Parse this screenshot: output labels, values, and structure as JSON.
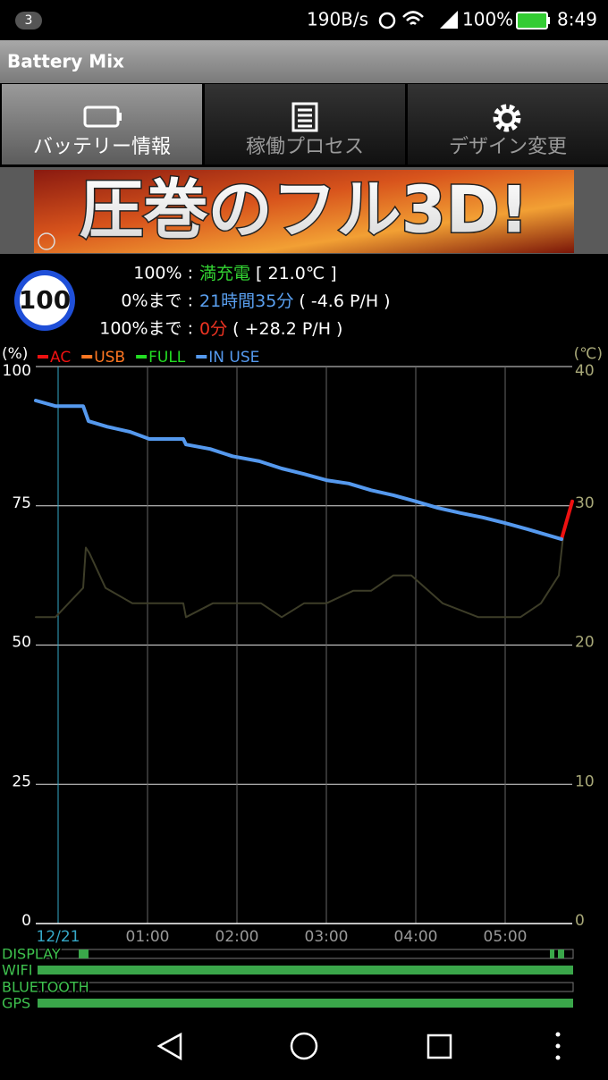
{
  "status_bar": {
    "notifications": "3",
    "network_speed": "190B/s",
    "battery": "100%",
    "time": "8:49"
  },
  "app_title": "Battery Mix",
  "tabs": [
    {
      "label": "バッテリー情報",
      "selected": true
    },
    {
      "label": "稼働プロセス",
      "selected": false
    },
    {
      "label": "デザイン変更",
      "selected": false
    }
  ],
  "ad": {
    "text": "圧巻のフル3D!"
  },
  "battery_info": {
    "level": 100,
    "lines": [
      {
        "prefix": "100% :",
        "highlight": "満充電",
        "highlight_color": "#33d633",
        "suffix": " [ 21.0℃ ]"
      },
      {
        "prefix": "0%まで :",
        "highlight": "21時間35分",
        "highlight_color": "#5aa0f0",
        "suffix": " ( -4.6 P/H )"
      },
      {
        "prefix": "100%まで :",
        "highlight": "0分",
        "highlight_color": "#ee3322",
        "suffix": " ( +28.2 P/H )"
      }
    ]
  },
  "chart_data": {
    "type": "line",
    "y_label": "(%)",
    "y2_label": "(℃)",
    "xlim": [
      -0.25,
      5.75
    ],
    "xticks": [
      {
        "value": 0,
        "label": "12/21"
      },
      {
        "value": 1,
        "label": "01:00"
      },
      {
        "value": 2,
        "label": "02:00"
      },
      {
        "value": 3,
        "label": "03:00"
      },
      {
        "value": 4,
        "label": "04:00"
      },
      {
        "value": 5,
        "label": "05:00"
      }
    ],
    "ylim": [
      0,
      100
    ],
    "yticks": [
      0,
      25,
      50,
      75,
      100
    ],
    "y2lim": [
      0,
      40
    ],
    "y2ticks": [
      0,
      10,
      20,
      30,
      40
    ],
    "grid": true,
    "series": [
      {
        "name": "AC",
        "color": "#ee1111",
        "line_width": 4,
        "x": [
          5.63,
          5.75
        ],
        "values": [
          69.0,
          75.8
        ]
      },
      {
        "name": "USB",
        "color": "#ff7722",
        "line_width": 4,
        "x": [],
        "values": []
      },
      {
        "name": "FULL",
        "color": "#22dd22",
        "line_width": 4,
        "x": [],
        "values": []
      },
      {
        "name": "IN USE",
        "color": "#5599ee",
        "line_width": 4,
        "x": [
          -0.25,
          -0.03,
          0.28,
          0.34,
          0.55,
          0.8,
          1.02,
          1.4,
          1.43,
          1.7,
          1.95,
          2.25,
          2.5,
          2.75,
          3.0,
          3.25,
          3.5,
          3.75,
          4.0,
          4.25,
          4.5,
          4.75,
          5.0,
          5.25,
          5.63
        ],
        "values": [
          93.9,
          92.9,
          92.9,
          90.2,
          89.2,
          88.3,
          87.0,
          87.0,
          86.0,
          85.2,
          83.9,
          83.0,
          81.7,
          80.7,
          79.6,
          79.0,
          77.8,
          76.9,
          75.8,
          74.6,
          73.7,
          72.9,
          71.9,
          70.8,
          69.0
        ]
      },
      {
        "color": "#3d3d28",
        "line_width": 2,
        "axis": "y2",
        "x": [
          -0.25,
          -0.03,
          0.28,
          0.31,
          0.35,
          0.53,
          0.83,
          1.4,
          1.43,
          1.73,
          2.27,
          2.5,
          2.75,
          3.0,
          3.3,
          3.5,
          3.75,
          3.95,
          4.3,
          4.7,
          5.17,
          5.4,
          5.6,
          5.65
        ],
        "values": [
          22.0,
          22.0,
          24.1,
          27.0,
          26.6,
          24.1,
          23.0,
          23.0,
          22.0,
          23.0,
          23.0,
          22.0,
          23.0,
          23.0,
          23.9,
          23.9,
          25.0,
          25.0,
          23.0,
          22.0,
          22.0,
          23.0,
          25.0,
          27.9
        ]
      }
    ]
  },
  "activity": {
    "labels": [
      "DISPLAY",
      "WIFI",
      "BLUETOOTH",
      "GPS"
    ]
  }
}
